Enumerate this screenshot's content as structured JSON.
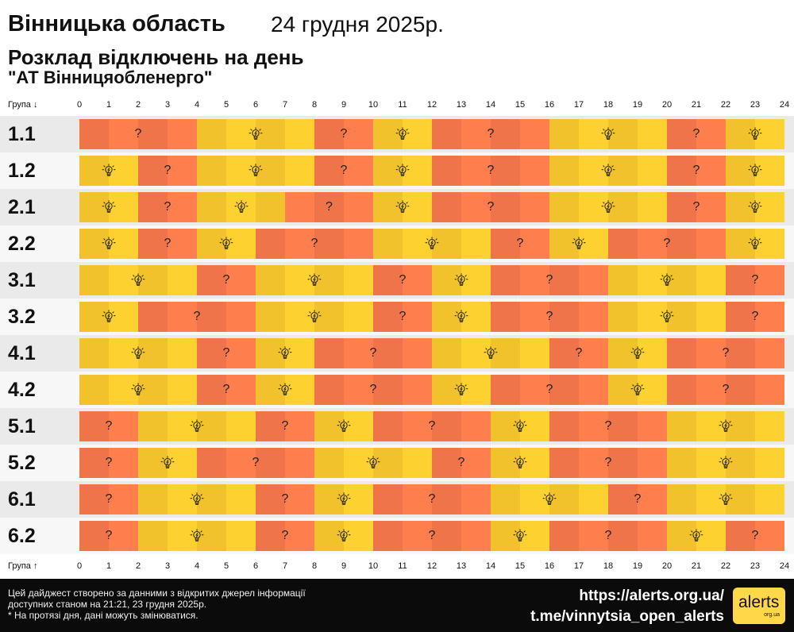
{
  "header": {
    "region": "Вінницька область",
    "date": "24 грудня 2025р.",
    "schedule_title": "Розклад відключень на день",
    "company": "\"АТ Вінницяобленерго\""
  },
  "axis": {
    "group_label_top": "Група ↓",
    "group_label_bottom": "Група ↑",
    "hours": [
      "0",
      "1",
      "2",
      "3",
      "4",
      "5",
      "6",
      "7",
      "8",
      "9",
      "10",
      "11",
      "12",
      "13",
      "14",
      "15",
      "16",
      "17",
      "18",
      "19",
      "20",
      "21",
      "22",
      "23",
      "24"
    ]
  },
  "legend": {
    "off_color": "#fe7e4e",
    "on_color": "#fdd12f",
    "off_icon": "question-mark-icon",
    "on_icon": "lightbulb-icon",
    "unknown_mark": "?"
  },
  "chart_data": {
    "type": "table",
    "x_unit": "hour",
    "xlim": [
      0,
      24
    ],
    "states": {
      "on": "power available",
      "off": "possible outage"
    },
    "groups": [
      {
        "name": "1.1",
        "segments": [
          {
            "start": 0,
            "end": 4,
            "state": "off"
          },
          {
            "start": 4,
            "end": 8,
            "state": "on"
          },
          {
            "start": 8,
            "end": 10,
            "state": "off"
          },
          {
            "start": 10,
            "end": 12,
            "state": "on"
          },
          {
            "start": 12,
            "end": 16,
            "state": "off"
          },
          {
            "start": 16,
            "end": 20,
            "state": "on"
          },
          {
            "start": 20,
            "end": 22,
            "state": "off"
          },
          {
            "start": 22,
            "end": 24,
            "state": "on"
          }
        ]
      },
      {
        "name": "1.2",
        "segments": [
          {
            "start": 0,
            "end": 2,
            "state": "on"
          },
          {
            "start": 2,
            "end": 4,
            "state": "off"
          },
          {
            "start": 4,
            "end": 8,
            "state": "on"
          },
          {
            "start": 8,
            "end": 10,
            "state": "off"
          },
          {
            "start": 10,
            "end": 12,
            "state": "on"
          },
          {
            "start": 12,
            "end": 16,
            "state": "off"
          },
          {
            "start": 16,
            "end": 20,
            "state": "on"
          },
          {
            "start": 20,
            "end": 22,
            "state": "off"
          },
          {
            "start": 22,
            "end": 24,
            "state": "on"
          }
        ]
      },
      {
        "name": "2.1",
        "segments": [
          {
            "start": 0,
            "end": 2,
            "state": "on"
          },
          {
            "start": 2,
            "end": 4,
            "state": "off"
          },
          {
            "start": 4,
            "end": 7,
            "state": "on"
          },
          {
            "start": 7,
            "end": 10,
            "state": "off"
          },
          {
            "start": 10,
            "end": 12,
            "state": "on"
          },
          {
            "start": 12,
            "end": 16,
            "state": "off"
          },
          {
            "start": 16,
            "end": 20,
            "state": "on"
          },
          {
            "start": 20,
            "end": 22,
            "state": "off"
          },
          {
            "start": 22,
            "end": 24,
            "state": "on"
          }
        ]
      },
      {
        "name": "2.2",
        "segments": [
          {
            "start": 0,
            "end": 2,
            "state": "on"
          },
          {
            "start": 2,
            "end": 4,
            "state": "off"
          },
          {
            "start": 4,
            "end": 6,
            "state": "on"
          },
          {
            "start": 6,
            "end": 10,
            "state": "off"
          },
          {
            "start": 10,
            "end": 14,
            "state": "on"
          },
          {
            "start": 14,
            "end": 16,
            "state": "off"
          },
          {
            "start": 16,
            "end": 18,
            "state": "on"
          },
          {
            "start": 18,
            "end": 22,
            "state": "off"
          },
          {
            "start": 22,
            "end": 24,
            "state": "on"
          }
        ]
      },
      {
        "name": "3.1",
        "segments": [
          {
            "start": 0,
            "end": 4,
            "state": "on"
          },
          {
            "start": 4,
            "end": 6,
            "state": "off"
          },
          {
            "start": 6,
            "end": 10,
            "state": "on"
          },
          {
            "start": 10,
            "end": 12,
            "state": "off"
          },
          {
            "start": 12,
            "end": 14,
            "state": "on"
          },
          {
            "start": 14,
            "end": 18,
            "state": "off"
          },
          {
            "start": 18,
            "end": 22,
            "state": "on"
          },
          {
            "start": 22,
            "end": 24,
            "state": "off"
          }
        ]
      },
      {
        "name": "3.2",
        "segments": [
          {
            "start": 0,
            "end": 2,
            "state": "on"
          },
          {
            "start": 2,
            "end": 6,
            "state": "off"
          },
          {
            "start": 6,
            "end": 10,
            "state": "on"
          },
          {
            "start": 10,
            "end": 12,
            "state": "off"
          },
          {
            "start": 12,
            "end": 14,
            "state": "on"
          },
          {
            "start": 14,
            "end": 18,
            "state": "off"
          },
          {
            "start": 18,
            "end": 22,
            "state": "on"
          },
          {
            "start": 22,
            "end": 24,
            "state": "off"
          }
        ]
      },
      {
        "name": "4.1",
        "segments": [
          {
            "start": 0,
            "end": 4,
            "state": "on"
          },
          {
            "start": 4,
            "end": 6,
            "state": "off"
          },
          {
            "start": 6,
            "end": 8,
            "state": "on"
          },
          {
            "start": 8,
            "end": 12,
            "state": "off"
          },
          {
            "start": 12,
            "end": 16,
            "state": "on"
          },
          {
            "start": 16,
            "end": 18,
            "state": "off"
          },
          {
            "start": 18,
            "end": 20,
            "state": "on"
          },
          {
            "start": 20,
            "end": 24,
            "state": "off"
          }
        ]
      },
      {
        "name": "4.2",
        "segments": [
          {
            "start": 0,
            "end": 4,
            "state": "on"
          },
          {
            "start": 4,
            "end": 6,
            "state": "off"
          },
          {
            "start": 6,
            "end": 8,
            "state": "on"
          },
          {
            "start": 8,
            "end": 12,
            "state": "off"
          },
          {
            "start": 12,
            "end": 14,
            "state": "on"
          },
          {
            "start": 14,
            "end": 18,
            "state": "off"
          },
          {
            "start": 18,
            "end": 20,
            "state": "on"
          },
          {
            "start": 20,
            "end": 24,
            "state": "off"
          }
        ]
      },
      {
        "name": "5.1",
        "segments": [
          {
            "start": 0,
            "end": 2,
            "state": "off"
          },
          {
            "start": 2,
            "end": 6,
            "state": "on"
          },
          {
            "start": 6,
            "end": 8,
            "state": "off"
          },
          {
            "start": 8,
            "end": 10,
            "state": "on"
          },
          {
            "start": 10,
            "end": 14,
            "state": "off"
          },
          {
            "start": 14,
            "end": 16,
            "state": "on"
          },
          {
            "start": 16,
            "end": 20,
            "state": "off"
          },
          {
            "start": 20,
            "end": 24,
            "state": "on"
          }
        ]
      },
      {
        "name": "5.2",
        "segments": [
          {
            "start": 0,
            "end": 2,
            "state": "off"
          },
          {
            "start": 2,
            "end": 4,
            "state": "on"
          },
          {
            "start": 4,
            "end": 8,
            "state": "off"
          },
          {
            "start": 8,
            "end": 12,
            "state": "on"
          },
          {
            "start": 12,
            "end": 14,
            "state": "off"
          },
          {
            "start": 14,
            "end": 16,
            "state": "on"
          },
          {
            "start": 16,
            "end": 20,
            "state": "off"
          },
          {
            "start": 20,
            "end": 24,
            "state": "on"
          }
        ]
      },
      {
        "name": "6.1",
        "segments": [
          {
            "start": 0,
            "end": 2,
            "state": "off"
          },
          {
            "start": 2,
            "end": 6,
            "state": "on"
          },
          {
            "start": 6,
            "end": 8,
            "state": "off"
          },
          {
            "start": 8,
            "end": 10,
            "state": "on"
          },
          {
            "start": 10,
            "end": 14,
            "state": "off"
          },
          {
            "start": 14,
            "end": 18,
            "state": "on"
          },
          {
            "start": 18,
            "end": 20,
            "state": "off"
          },
          {
            "start": 20,
            "end": 24,
            "state": "on"
          }
        ]
      },
      {
        "name": "6.2",
        "segments": [
          {
            "start": 0,
            "end": 2,
            "state": "off"
          },
          {
            "start": 2,
            "end": 6,
            "state": "on"
          },
          {
            "start": 6,
            "end": 8,
            "state": "off"
          },
          {
            "start": 8,
            "end": 10,
            "state": "on"
          },
          {
            "start": 10,
            "end": 14,
            "state": "off"
          },
          {
            "start": 14,
            "end": 16,
            "state": "on"
          },
          {
            "start": 16,
            "end": 20,
            "state": "off"
          },
          {
            "start": 20,
            "end": 22,
            "state": "on"
          },
          {
            "start": 22,
            "end": 24,
            "state": "off"
          }
        ]
      }
    ]
  },
  "footer": {
    "note_line1": "Цей дайджест створено за данними з відкритих джерел інформації",
    "note_line2": "доступних станом на 21:21, 23 грудня 2025р.",
    "note_line3": "* На протязі дня, дані можуть змінюватися.",
    "link_site": "https://alerts.org.ua/",
    "link_telegram": "t.me/vinnytsia_open_alerts",
    "logo_text": "alerts",
    "logo_sub": "org.ua"
  }
}
